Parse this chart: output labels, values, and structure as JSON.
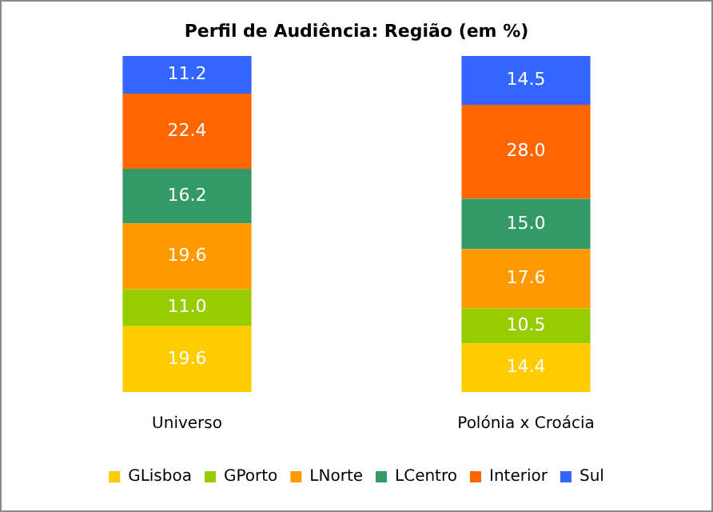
{
  "chart_data": {
    "type": "bar",
    "title": "Perfil de Audiência: Região (em %)",
    "categories": [
      "Universo",
      "Polónia x Croácia"
    ],
    "stacked": true,
    "legend": "bottom",
    "grid": false,
    "tick_labels": "x",
    "series": [
      {
        "name": "GLisboa",
        "color": "#ffcc00",
        "values": [
          19.6,
          14.4
        ],
        "value_labels": [
          "19.6",
          "14.4"
        ]
      },
      {
        "name": "GPorto",
        "color": "#99cc00",
        "values": [
          11.0,
          10.5
        ],
        "value_labels": [
          "11.0",
          "10.5"
        ]
      },
      {
        "name": "LNorte",
        "color": "#ff9900",
        "values": [
          19.6,
          17.6
        ],
        "value_labels": [
          "19.6",
          "17.6"
        ]
      },
      {
        "name": "LCentro",
        "color": "#339966",
        "values": [
          16.2,
          15.0
        ],
        "value_labels": [
          "16.2",
          "15.0"
        ]
      },
      {
        "name": "Interior",
        "color": "#ff6600",
        "values": [
          22.4,
          28.0
        ],
        "value_labels": [
          "22.4",
          "28.0"
        ]
      },
      {
        "name": "Sul",
        "color": "#3366ff",
        "values": [
          11.2,
          14.5
        ],
        "value_labels": [
          "11.2",
          "14.5"
        ]
      }
    ]
  }
}
